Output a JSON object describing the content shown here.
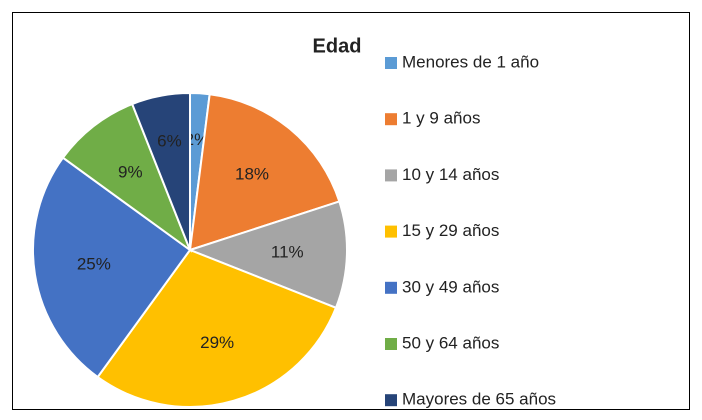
{
  "chart_data": {
    "type": "pie",
    "title": "Edad",
    "categories": [
      "Menores de 1 año",
      "1 y 9 años",
      "10 y 14 años",
      "15 y 29 años",
      "30 y 49 años",
      "50 y 64 años",
      "Mayores de 65 años"
    ],
    "values": [
      2,
      18,
      11,
      29,
      25,
      9,
      6
    ],
    "value_labels": [
      "2%",
      "18%",
      "11%",
      "29%",
      "25%",
      "9%",
      "6%"
    ],
    "colors": [
      "#5b9bd5",
      "#ed7d31",
      "#a5a5a5",
      "#ffc000",
      "#4472c4",
      "#70ad47",
      "#264478"
    ],
    "legend": "right"
  }
}
